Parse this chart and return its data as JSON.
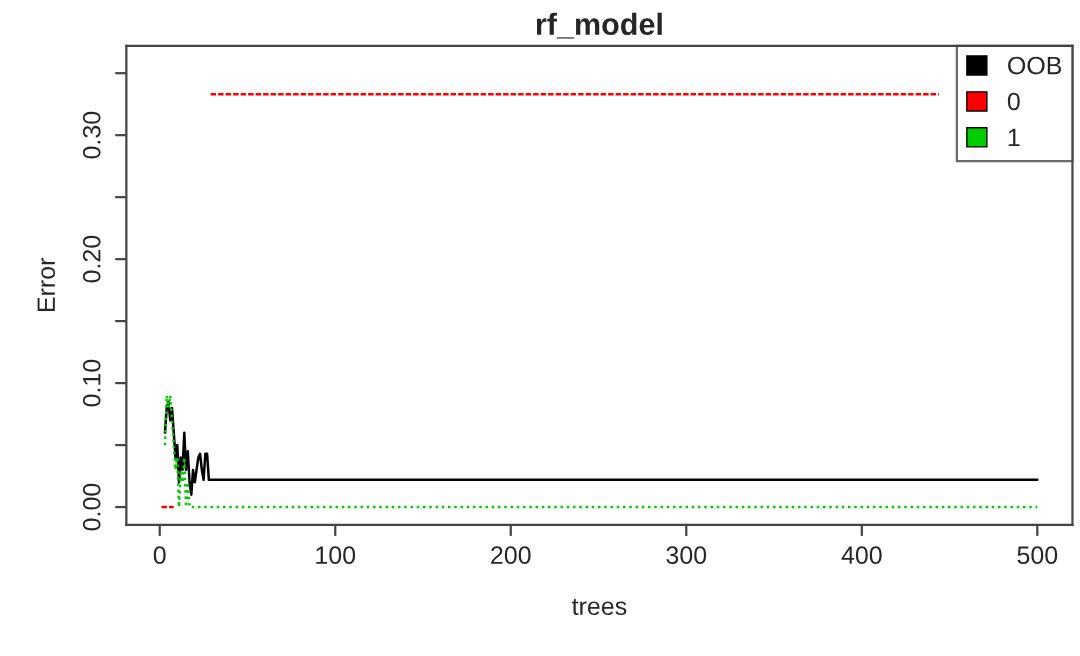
{
  "chart_data": {
    "type": "line",
    "title": "rf_model",
    "xlabel": "trees",
    "ylabel": "Error",
    "xlim": [
      -19,
      520
    ],
    "xticks": [
      0,
      100,
      200,
      300,
      400,
      500
    ],
    "ylim": [
      -0.0143,
      0.372
    ],
    "yticks": [
      {
        "value": 0,
        "label": "0.00"
      },
      {
        "value": 0.05,
        "label": null
      },
      {
        "value": 0.1,
        "label": "0.10"
      },
      {
        "value": 0.15,
        "label": null
      },
      {
        "value": 0.2,
        "label": "0.20"
      },
      {
        "value": 0.25,
        "label": null
      },
      {
        "value": 0.3,
        "label": "0.30"
      },
      {
        "value": 0.35,
        "label": null
      }
    ],
    "legend": "top right",
    "grid": false,
    "series": [
      {
        "name": "OOB",
        "color": "#000000",
        "line_style": "solid",
        "x": [
          3,
          4,
          5,
          6,
          7,
          8,
          9,
          10,
          11,
          12,
          13,
          14,
          15,
          16,
          17,
          18,
          19,
          20,
          21,
          22,
          23,
          24,
          25,
          26,
          27,
          28,
          29,
          500
        ],
        "values": [
          0.06,
          0.08,
          0.085,
          0.07,
          0.08,
          0.06,
          0.04,
          0.05,
          0.02,
          0.04,
          0.03,
          0.06,
          0.03,
          0.045,
          0.02,
          0.01,
          0.03,
          0.02,
          0.03,
          0.04,
          0.043,
          0.03,
          0.022,
          0.043,
          0.043,
          0.022,
          0.022,
          0.022
        ]
      },
      {
        "name": "0",
        "color": "#ff0000",
        "line_style": "dashed",
        "x": [
          1,
          8,
          9,
          29,
          444
        ],
        "values": [
          0,
          0,
          null,
          0.333,
          0.333
        ]
      },
      {
        "name": "1",
        "color": "#00cd00",
        "line_style": "dotted",
        "x": [
          3,
          4,
          5,
          6,
          7,
          8,
          9,
          10,
          11,
          12,
          13,
          14,
          15,
          16,
          17,
          18,
          500
        ],
        "values": [
          0.05,
          0.09,
          0.08,
          0.09,
          0.07,
          0.05,
          0.03,
          0.04,
          0.0,
          0.03,
          0.02,
          0.04,
          0.0,
          0.02,
          0.0,
          0.0,
          0.0
        ]
      }
    ]
  }
}
